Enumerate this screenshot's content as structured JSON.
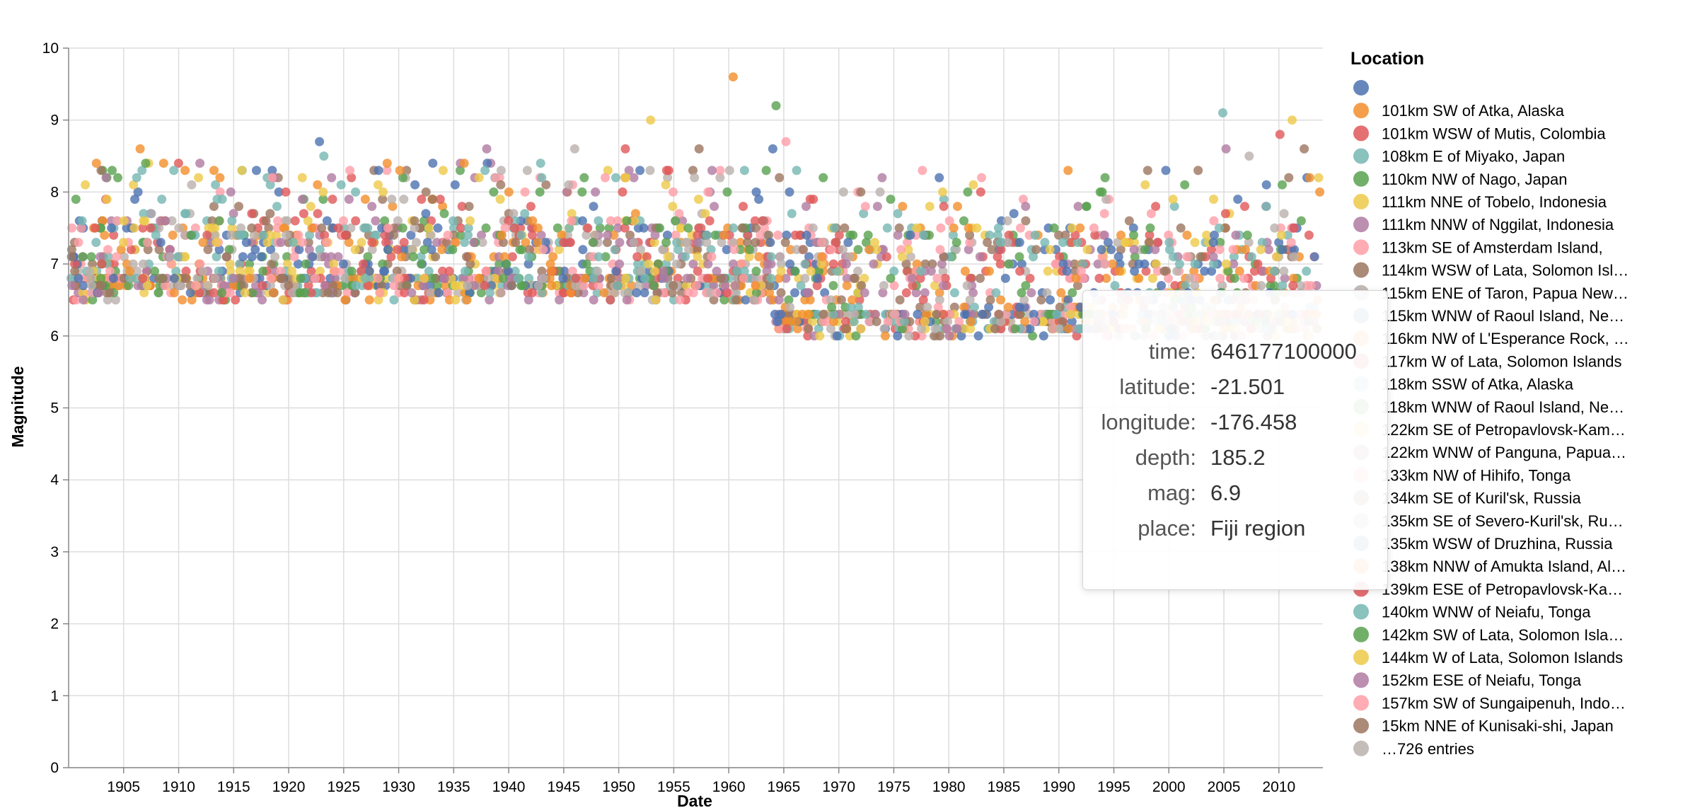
{
  "chart_data": {
    "type": "scatter",
    "title": "",
    "xlabel": "Date",
    "ylabel": "Magnitude",
    "xlim": [
      1900,
      2014
    ],
    "ylim": [
      0,
      10
    ],
    "x_ticks": [
      "1905",
      "1910",
      "1915",
      "1920",
      "1925",
      "1930",
      "1935",
      "1940",
      "1945",
      "1950",
      "1955",
      "1960",
      "1965",
      "1970",
      "1975",
      "1980",
      "1985",
      "1990",
      "1995",
      "2000",
      "2005",
      "2010"
    ],
    "y_ticks": [
      "0",
      "1",
      "2",
      "3",
      "4",
      "5",
      "6",
      "7",
      "8",
      "9",
      "10"
    ],
    "grid": true,
    "legend_position": "right",
    "legend_title": "Location",
    "legend": [
      {
        "label": "",
        "color": "#4c72b0"
      },
      {
        "label": "101km SW of Atka, Alaska",
        "color": "#f28e2b"
      },
      {
        "label": "101km WSW of Mutis, Colombia",
        "color": "#e15759"
      },
      {
        "label": "108km E of Miyako, Japan",
        "color": "#76b7b2"
      },
      {
        "label": "110km NW of Nago, Japan",
        "color": "#59a14f"
      },
      {
        "label": "111km NNE of Tobelo, Indonesia",
        "color": "#edc948"
      },
      {
        "label": "111km NNW of Nggilat, Indonesia",
        "color": "#b07aa1"
      },
      {
        "label": "113km SE of Amsterdam Island,",
        "color": "#ff9da7"
      },
      {
        "label": "114km WSW of Lata, Solomon Isl…",
        "color": "#9c755f"
      },
      {
        "label": "115km ENE of Taron, Papua New…",
        "color": "#bab0ac"
      },
      {
        "label": "115km WNW of Raoul Island, Ne…",
        "color": "#4c72b0"
      },
      {
        "label": "116km NW of L'Esperance Rock, …",
        "color": "#f28e2b"
      },
      {
        "label": "117km W of Lata, Solomon Islands",
        "color": "#e15759"
      },
      {
        "label": "118km SSW of Atka, Alaska",
        "color": "#76b7b2"
      },
      {
        "label": "118km WNW of Raoul Island, Ne…",
        "color": "#59a14f"
      },
      {
        "label": "122km SE of Petropavlovsk-Kam…",
        "color": "#edc948"
      },
      {
        "label": "122km WNW of Panguna, Papua…",
        "color": "#b07aa1"
      },
      {
        "label": "133km NW of Hihifo, Tonga",
        "color": "#ff9da7"
      },
      {
        "label": "134km SE of Kuril'sk, Russia",
        "color": "#9c755f"
      },
      {
        "label": "135km SE of Severo-Kuril'sk, Ru…",
        "color": "#bab0ac"
      },
      {
        "label": "135km WSW of Druzhina, Russia",
        "color": "#4c72b0"
      },
      {
        "label": "138km NNW of Amukta Island, Al…",
        "color": "#f28e2b"
      },
      {
        "label": "139km ESE of Petropavlovsk-Ka…",
        "color": "#e15759"
      },
      {
        "label": "140km WNW of Neiafu, Tonga",
        "color": "#76b7b2"
      },
      {
        "label": "142km SW of Lata, Solomon Isla…",
        "color": "#59a14f"
      },
      {
        "label": "144km W of Lata, Solomon Islands",
        "color": "#edc948"
      },
      {
        "label": "152km ESE of Neiafu, Tonga",
        "color": "#b07aa1"
      },
      {
        "label": "157km SW of Sungaipenuh, Indo…",
        "color": "#ff9da7"
      },
      {
        "label": "15km NNE of Kunisaki-shi, Japan",
        "color": "#9c755f"
      },
      {
        "label": "…726 entries",
        "color": "#bab0ac"
      }
    ],
    "palette": [
      "#4c72b0",
      "#f28e2b",
      "#e15759",
      "#76b7b2",
      "#59a14f",
      "#edc948",
      "#b07aa1",
      "#ff9da7",
      "#9c755f",
      "#bab0ac"
    ],
    "outliers": [
      {
        "x": 1906.5,
        "y": 8.6
      },
      {
        "x": 1907,
        "y": 8.4
      },
      {
        "x": 1918.5,
        "y": 8.2
      },
      {
        "x": 1922.8,
        "y": 8.7
      },
      {
        "x": 1923.2,
        "y": 8.5
      },
      {
        "x": 1938,
        "y": 8.6
      },
      {
        "x": 1946,
        "y": 8.6
      },
      {
        "x": 1950.6,
        "y": 8.6
      },
      {
        "x": 1952.9,
        "y": 9.0
      },
      {
        "x": 1957.3,
        "y": 8.6
      },
      {
        "x": 1960.4,
        "y": 9.6
      },
      {
        "x": 1964.3,
        "y": 9.2
      },
      {
        "x": 1965.2,
        "y": 8.7
      },
      {
        "x": 1964,
        "y": 8.6
      },
      {
        "x": 2004.9,
        "y": 9.1
      },
      {
        "x": 2005.2,
        "y": 8.6
      },
      {
        "x": 2007.3,
        "y": 8.5
      },
      {
        "x": 2010.1,
        "y": 8.8
      },
      {
        "x": 2011.2,
        "y": 9.0
      },
      {
        "x": 2012.3,
        "y": 8.6
      },
      {
        "x": 2012.8,
        "y": 8.2
      },
      {
        "x": 1994.2,
        "y": 8.2
      },
      {
        "x": 1977.6,
        "y": 8.3
      },
      {
        "x": 1933.1,
        "y": 8.4
      },
      {
        "x": 1943,
        "y": 8.2
      },
      {
        "x": 1923.9,
        "y": 8.2
      }
    ]
  },
  "tooltip": {
    "rows": [
      {
        "key": "time:",
        "value": "646177100000"
      },
      {
        "key": "latitude:",
        "value": "-21.501"
      },
      {
        "key": "longitude:",
        "value": "-176.458"
      },
      {
        "key": "depth:",
        "value": "185.2"
      },
      {
        "key": "mag:",
        "value": "6.9"
      },
      {
        "key": "place:",
        "value": "Fiji region"
      }
    ]
  }
}
